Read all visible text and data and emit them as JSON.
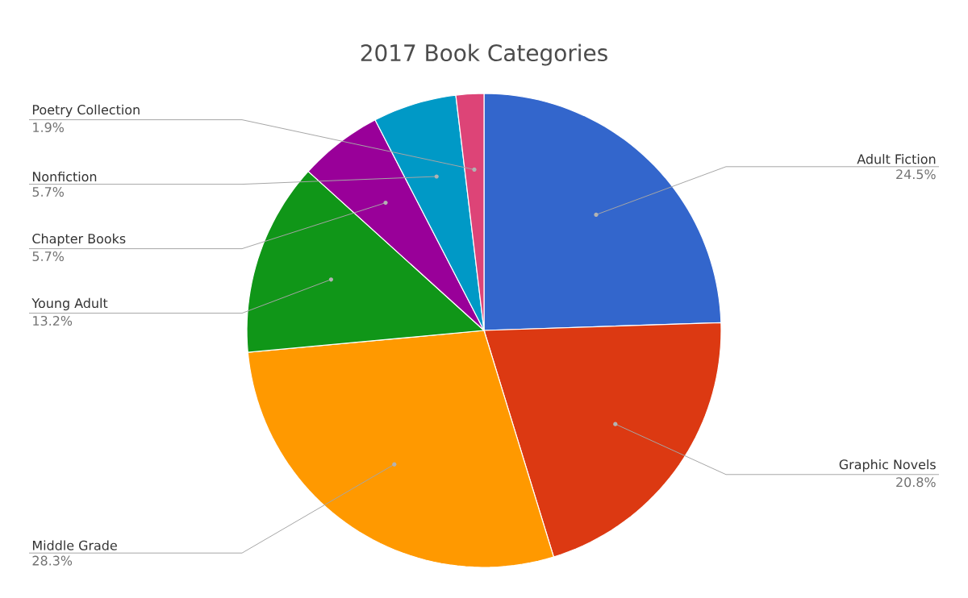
{
  "chart_data": {
    "type": "pie",
    "title": "2017 Book Categories",
    "categories": [
      "Adult Fiction",
      "Graphic Novels",
      "Middle Grade",
      "Young Adult",
      "Chapter Books",
      "Nonfiction",
      "Poetry Collection"
    ],
    "values": [
      24.5,
      20.8,
      28.3,
      13.2,
      5.7,
      5.7,
      1.9
    ],
    "colors": [
      "#3366cc",
      "#dc3912",
      "#ff9900",
      "#109618",
      "#990099",
      "#0099c6",
      "#dd4477"
    ],
    "value_labels": [
      "24.5%",
      "20.8%",
      "28.3%",
      "13.2%",
      "5.7%",
      "5.7%",
      "1.9%"
    ]
  }
}
